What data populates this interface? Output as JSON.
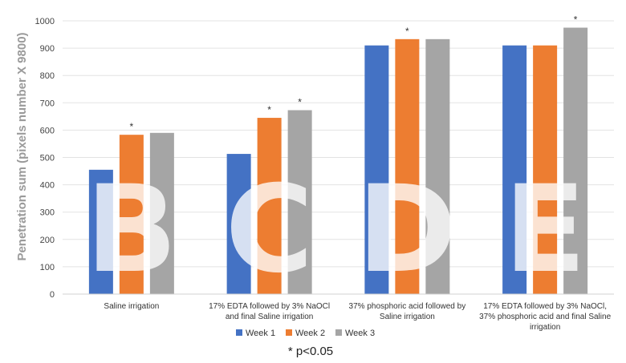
{
  "chart_data": {
    "type": "bar",
    "ylabel": "Penetration sum (pixels number X 9800)",
    "ylim": [
      0,
      1000
    ],
    "yticks": [
      0,
      100,
      200,
      300,
      400,
      500,
      600,
      700,
      800,
      900,
      1000
    ],
    "categories": [
      [
        "Saline irrigation"
      ],
      [
        "17% EDTA  followed by 3% NaOCl",
        "and final Saline irrigation"
      ],
      [
        "37% phosphoric acid followed by",
        "Saline irrigation"
      ],
      [
        "17% EDTA followed by 3% NaOCl,",
        "37% phosphoric acid and final Saline",
        "irrigation"
      ]
    ],
    "series": [
      {
        "name": "Week 1",
        "color": "#4472C4",
        "values": [
          455,
          513,
          910,
          910
        ]
      },
      {
        "name": "Week 2",
        "color": "#ED7D31",
        "values": [
          583,
          645,
          933,
          910
        ]
      },
      {
        "name": "Week 3",
        "color": "#A5A5A5",
        "values": [
          590,
          673,
          933,
          975
        ]
      }
    ],
    "significance_marker": "*",
    "significant": [
      [
        1,
        0
      ],
      [
        1,
        1
      ],
      [
        2,
        1
      ],
      [
        1,
        2
      ],
      [
        2,
        3
      ]
    ],
    "panel_letters": [
      "B",
      "C",
      "D",
      "E"
    ],
    "grid": true,
    "legend_position": "bottom",
    "footnote": "* p<0.05"
  }
}
